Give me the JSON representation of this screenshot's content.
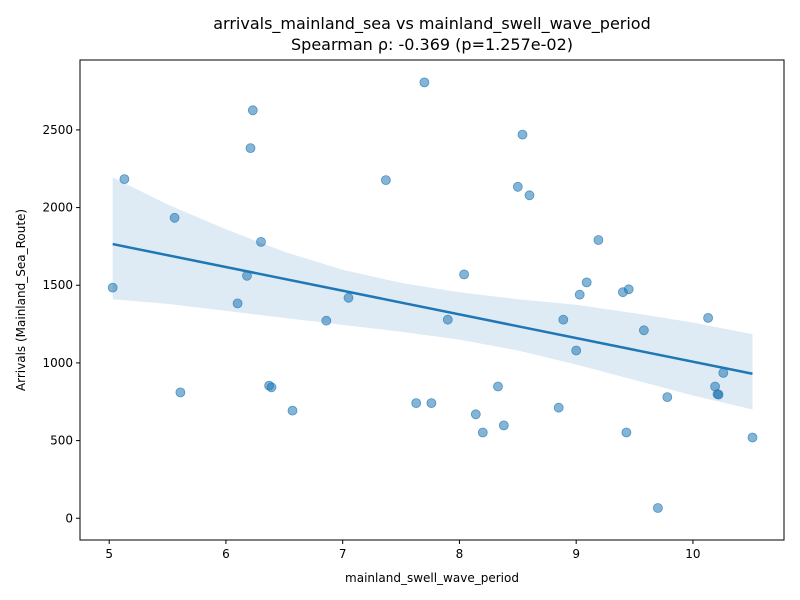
{
  "chart_data": {
    "type": "scatter",
    "title": "arrivals_mainland_sea vs mainland_swell_wave_period",
    "subtitle": "Spearman ρ: -0.369 (p=1.257e-02)",
    "xlabel": "mainland_swell_wave_period",
    "ylabel": "Arrivals (Mainland_Sea_Route)",
    "xlim": [
      4.75,
      10.78
    ],
    "ylim": [
      -140,
      2950
    ],
    "xticks": [
      5,
      6,
      7,
      8,
      9,
      10
    ],
    "yticks": [
      0,
      500,
      1000,
      1500,
      2000,
      2500
    ],
    "grid": false,
    "colors": {
      "points": "#1f77b4",
      "line": "#1f77b4",
      "band": "#1f77b4"
    },
    "points": [
      {
        "x": 5.03,
        "y": 1485
      },
      {
        "x": 5.13,
        "y": 2183
      },
      {
        "x": 5.56,
        "y": 1934
      },
      {
        "x": 5.61,
        "y": 810
      },
      {
        "x": 6.1,
        "y": 1383
      },
      {
        "x": 6.18,
        "y": 1561
      },
      {
        "x": 6.21,
        "y": 2383
      },
      {
        "x": 6.23,
        "y": 2626
      },
      {
        "x": 6.3,
        "y": 1779
      },
      {
        "x": 6.37,
        "y": 854
      },
      {
        "x": 6.39,
        "y": 843
      },
      {
        "x": 6.57,
        "y": 693
      },
      {
        "x": 6.86,
        "y": 1272
      },
      {
        "x": 7.05,
        "y": 1419
      },
      {
        "x": 7.37,
        "y": 2177
      },
      {
        "x": 7.63,
        "y": 741
      },
      {
        "x": 7.7,
        "y": 2806
      },
      {
        "x": 7.76,
        "y": 741
      },
      {
        "x": 7.9,
        "y": 1278
      },
      {
        "x": 8.04,
        "y": 1570
      },
      {
        "x": 8.14,
        "y": 669
      },
      {
        "x": 8.2,
        "y": 552
      },
      {
        "x": 8.33,
        "y": 848
      },
      {
        "x": 8.38,
        "y": 598
      },
      {
        "x": 8.5,
        "y": 2134
      },
      {
        "x": 8.54,
        "y": 2470
      },
      {
        "x": 8.6,
        "y": 2079
      },
      {
        "x": 8.85,
        "y": 712
      },
      {
        "x": 8.89,
        "y": 1278
      },
      {
        "x": 9.0,
        "y": 1080
      },
      {
        "x": 9.03,
        "y": 1439
      },
      {
        "x": 9.09,
        "y": 1518
      },
      {
        "x": 9.19,
        "y": 1791
      },
      {
        "x": 9.4,
        "y": 1455
      },
      {
        "x": 9.43,
        "y": 552
      },
      {
        "x": 9.45,
        "y": 1474
      },
      {
        "x": 9.58,
        "y": 1210
      },
      {
        "x": 9.7,
        "y": 66
      },
      {
        "x": 9.78,
        "y": 780
      },
      {
        "x": 10.13,
        "y": 1290
      },
      {
        "x": 10.19,
        "y": 848
      },
      {
        "x": 10.21,
        "y": 799
      },
      {
        "x": 10.22,
        "y": 796
      },
      {
        "x": 10.26,
        "y": 936
      },
      {
        "x": 10.51,
        "y": 520
      }
    ],
    "fit_line": {
      "x": [
        5.03,
        10.51
      ],
      "y": [
        1765,
        930
      ]
    },
    "confidence_band": {
      "x": [
        5.03,
        5.5,
        6.0,
        6.5,
        7.0,
        7.5,
        8.0,
        8.5,
        9.0,
        9.5,
        10.0,
        10.51
      ],
      "upper": [
        2195,
        2020,
        1860,
        1715,
        1600,
        1515,
        1455,
        1410,
        1375,
        1320,
        1260,
        1185
      ],
      "lower": [
        1410,
        1380,
        1335,
        1290,
        1245,
        1200,
        1150,
        1080,
        990,
        890,
        790,
        700
      ]
    }
  }
}
